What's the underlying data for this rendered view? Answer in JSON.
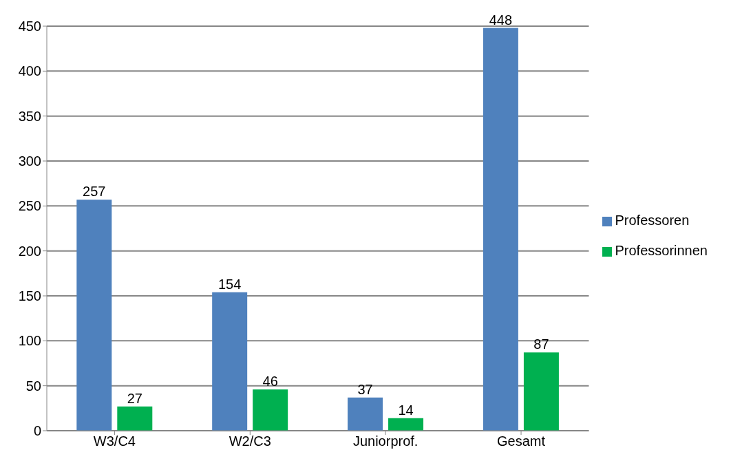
{
  "chart_data": {
    "type": "bar",
    "categories": [
      "W3/C4",
      "W2/C3",
      "Juniorprof.",
      "Gesamt"
    ],
    "series": [
      {
        "name": "Professoren",
        "color": "#4f81bd",
        "values": [
          257,
          154,
          37,
          448
        ]
      },
      {
        "name": "Professorinnen",
        "color": "#00b050",
        "values": [
          27,
          46,
          14,
          87
        ]
      }
    ],
    "ylim": [
      0,
      450
    ],
    "yticks": [
      0,
      50,
      100,
      150,
      200,
      250,
      300,
      350,
      400,
      450
    ],
    "grid": "y",
    "legend": "right",
    "data_labels": true
  }
}
